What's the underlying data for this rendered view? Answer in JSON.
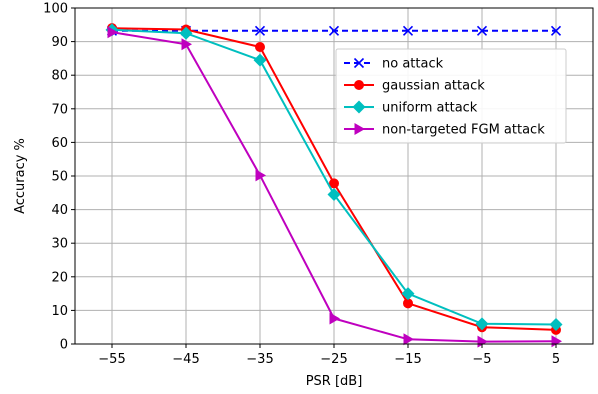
{
  "chart_data": {
    "type": "line",
    "xlabel": "PSR [dB]",
    "ylabel": "Accuracy %",
    "x": [
      -55,
      -45,
      -35,
      -25,
      -15,
      -5,
      5
    ],
    "x_tick_labels": [
      "−55",
      "−45",
      "−35",
      "−25",
      "−15",
      "−5",
      "5"
    ],
    "xlim": [
      -60,
      10
    ],
    "ylim": [
      0,
      100
    ],
    "y_ticks": [
      0,
      10,
      20,
      30,
      40,
      50,
      60,
      70,
      80,
      90,
      100
    ],
    "grid": true,
    "legend_position": "upper-right (inside plot)",
    "series": [
      {
        "name": "no attack",
        "color": "#0000ff",
        "line_style": "dashed",
        "marker": "x",
        "values": [
          93.2,
          93.2,
          93.2,
          93.2,
          93.2,
          93.2,
          93.2
        ]
      },
      {
        "name": "gaussian attack",
        "color": "#ff0000",
        "line_style": "solid",
        "marker": "circle",
        "values": [
          94.0,
          93.6,
          88.4,
          47.8,
          12.1,
          5.0,
          4.2
        ]
      },
      {
        "name": "uniform attack",
        "color": "#00bfbf",
        "line_style": "solid",
        "marker": "diamond",
        "values": [
          93.5,
          92.5,
          84.5,
          44.5,
          15.0,
          6.0,
          5.8
        ]
      },
      {
        "name": "non-targeted FGM attack",
        "color": "#bf00bf",
        "line_style": "solid",
        "marker": "triangle-right",
        "values": [
          92.8,
          89.2,
          50.2,
          7.6,
          1.4,
          0.7,
          0.8
        ]
      }
    ]
  }
}
